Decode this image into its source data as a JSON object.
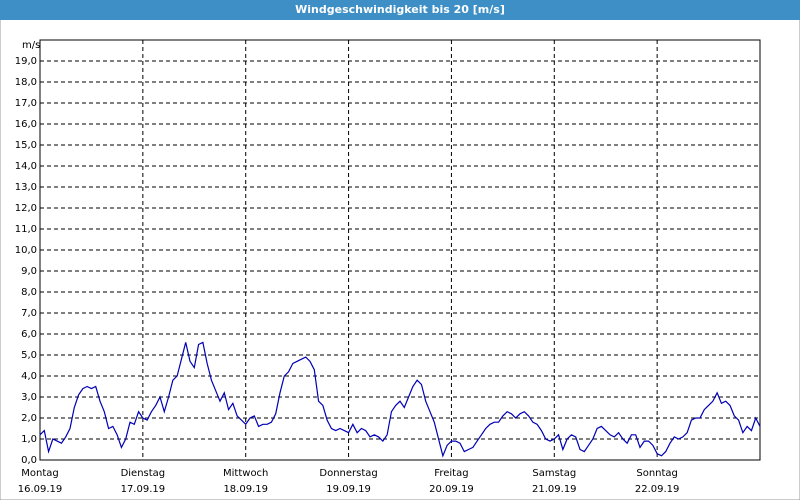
{
  "chart_data": {
    "type": "line",
    "title": "Windgeschwindigkeit bis 20 [m/s]",
    "y_unit": "m/s",
    "x": [
      0,
      1,
      2,
      3,
      4,
      5,
      6,
      7,
      8,
      9,
      10,
      11,
      12,
      13,
      14,
      15,
      16,
      17,
      18,
      19,
      20,
      21,
      22,
      23,
      24,
      25,
      26,
      27,
      28,
      29,
      30,
      31,
      32,
      33,
      34,
      35,
      36,
      37,
      38,
      39,
      40,
      41,
      42,
      43,
      44,
      45,
      46,
      47,
      48,
      49,
      50,
      51,
      52,
      53,
      54,
      55,
      56,
      57,
      58,
      59,
      60,
      61,
      62,
      63,
      64,
      65,
      66,
      67,
      68,
      69,
      70,
      71,
      72,
      73,
      74,
      75,
      76,
      77,
      78,
      79,
      80,
      81,
      82,
      83,
      84,
      85,
      86,
      87,
      88,
      89,
      90,
      91,
      92,
      93,
      94,
      95,
      96,
      97,
      98,
      99,
      100,
      101,
      102,
      103,
      104,
      105,
      106,
      107,
      108,
      109,
      110,
      111,
      112,
      113,
      114,
      115,
      116,
      117,
      118,
      119,
      120,
      121,
      122,
      123,
      124,
      125,
      126,
      127,
      128,
      129,
      130,
      131,
      132,
      133,
      134,
      135,
      136,
      137,
      138,
      139,
      140,
      141,
      142,
      143,
      144,
      145,
      146,
      147,
      148,
      149,
      150,
      151,
      152,
      153,
      154,
      155,
      156,
      157,
      158,
      159,
      160,
      161,
      162,
      163,
      164,
      165,
      166,
      167,
      168
    ],
    "series": [
      {
        "color": "#0000b4",
        "values": [
          1.2,
          1.4,
          0.4,
          1.0,
          0.9,
          0.8,
          1.1,
          1.5,
          2.5,
          3.1,
          3.4,
          3.5,
          3.4,
          3.5,
          2.8,
          2.3,
          1.5,
          1.6,
          1.2,
          0.6,
          1.0,
          1.8,
          1.7,
          2.3,
          2.0,
          1.9,
          2.3,
          2.6,
          3.0,
          2.3,
          3.0,
          3.8,
          4.0,
          4.8,
          5.6,
          4.7,
          4.4,
          5.5,
          5.6,
          4.6,
          3.8,
          3.3,
          2.8,
          3.2,
          2.4,
          2.7,
          2.1,
          1.9,
          1.7,
          2.0,
          2.1,
          1.6,
          1.7,
          1.7,
          1.8,
          2.2,
          3.2,
          4.0,
          4.2,
          4.6,
          4.7,
          4.8,
          4.9,
          4.7,
          4.3,
          2.8,
          2.6,
          1.9,
          1.5,
          1.4,
          1.5,
          1.4,
          1.3,
          1.7,
          1.3,
          1.5,
          1.4,
          1.1,
          1.2,
          1.1,
          0.9,
          1.2,
          2.3,
          2.6,
          2.8,
          2.5,
          3.0,
          3.5,
          3.8,
          3.6,
          2.8,
          2.3,
          1.8,
          1.0,
          0.2,
          0.7,
          0.9,
          0.9,
          0.8,
          0.4,
          0.5,
          0.6,
          0.9,
          1.2,
          1.5,
          1.7,
          1.8,
          1.8,
          2.1,
          2.3,
          2.2,
          2.0,
          2.2,
          2.3,
          2.1,
          1.8,
          1.7,
          1.4,
          1.0,
          0.9,
          1.0,
          1.2,
          0.5,
          1.0,
          1.2,
          1.1,
          0.5,
          0.4,
          0.7,
          1.0,
          1.5,
          1.6,
          1.4,
          1.2,
          1.1,
          1.3,
          1.0,
          0.8,
          1.2,
          1.2,
          0.6,
          0.9,
          0.9,
          0.7,
          0.3,
          0.2,
          0.4,
          0.8,
          1.1,
          1.0,
          1.1,
          1.3,
          1.9,
          2.0,
          2.0,
          2.4,
          2.6,
          2.8,
          3.2,
          2.7,
          2.8,
          2.6,
          2.1,
          1.9,
          1.3,
          1.6,
          1.4,
          2.0,
          1.6
        ]
      }
    ],
    "xlim": [
      0,
      168
    ],
    "xticks": [
      {
        "value": 0,
        "label": "Montag"
      },
      {
        "value": 24,
        "label": "Dienstag"
      },
      {
        "value": 48,
        "label": "Mittwoch"
      },
      {
        "value": 72,
        "label": "Donnerstag"
      },
      {
        "value": 96,
        "label": "Freitag"
      },
      {
        "value": 120,
        "label": "Samstag"
      },
      {
        "value": 144,
        "label": "Sonntag"
      }
    ],
    "xtick_dates": [
      "16.09.19",
      "17.09.19",
      "18.09.19",
      "19.09.19",
      "20.09.19",
      "21.09.19",
      "22.09.19"
    ],
    "ylim": [
      0,
      20
    ],
    "yticks": [
      {
        "value": 0,
        "label": "0,0"
      },
      {
        "value": 1,
        "label": "1,0"
      },
      {
        "value": 2,
        "label": "2,0"
      },
      {
        "value": 3,
        "label": "3,0"
      },
      {
        "value": 4,
        "label": "4,0"
      },
      {
        "value": 5,
        "label": "5,0"
      },
      {
        "value": 6,
        "label": "6,0"
      },
      {
        "value": 7,
        "label": "7,0"
      },
      {
        "value": 8,
        "label": "8,0"
      },
      {
        "value": 9,
        "label": "9,0"
      },
      {
        "value": 10,
        "label": "10,0"
      },
      {
        "value": 11,
        "label": "11,0"
      },
      {
        "value": 12,
        "label": "12,0"
      },
      {
        "value": 13,
        "label": "13,0"
      },
      {
        "value": 14,
        "label": "14,0"
      },
      {
        "value": 15,
        "label": "15,0"
      },
      {
        "value": 16,
        "label": "16,0"
      },
      {
        "value": 17,
        "label": "17,0"
      },
      {
        "value": 18,
        "label": "18,0"
      },
      {
        "value": 19,
        "label": "19,0"
      }
    ],
    "grid": true
  }
}
